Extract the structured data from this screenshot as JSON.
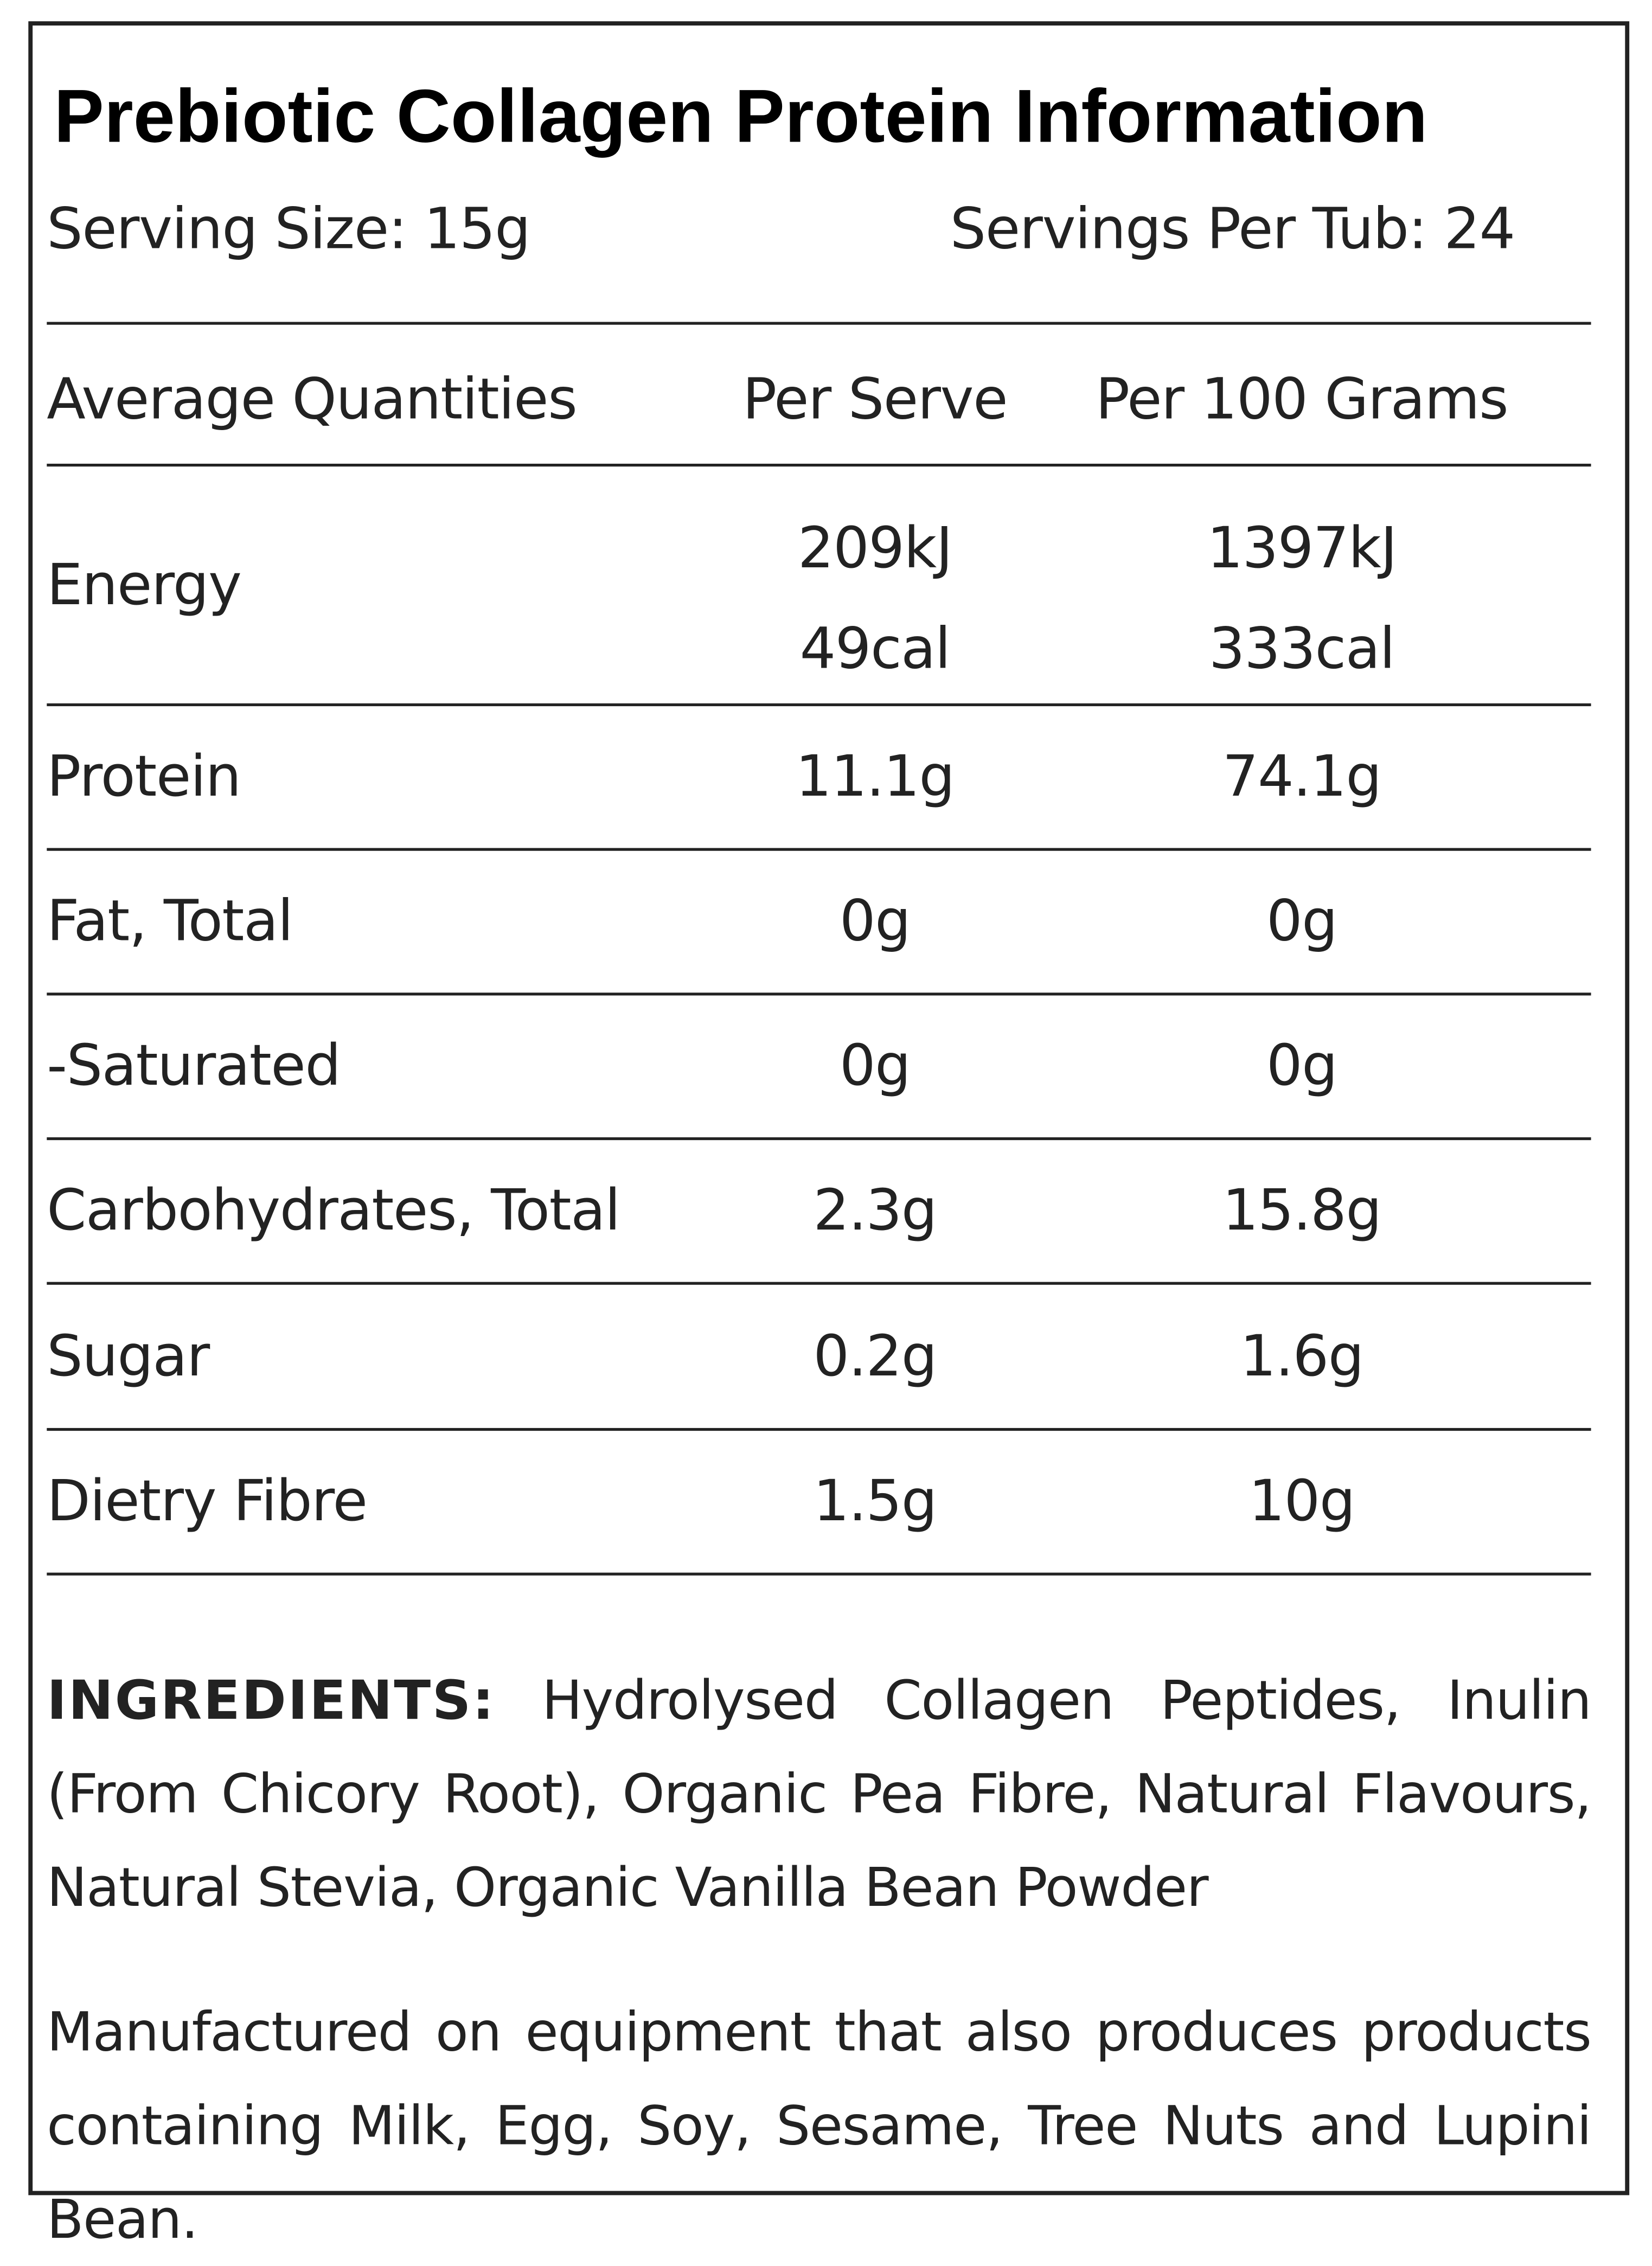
{
  "title": "Prebiotic Collagen Protein Information",
  "serving_size": "Serving Size: 15g",
  "servings_per_tub": "Servings Per Tub: 24",
  "table": {
    "header": [
      "Average Quantities",
      "Per Serve",
      "Per 100 Grams"
    ],
    "rows": [
      [
        [
          "Energy"
        ],
        [
          "209kJ",
          "49cal"
        ],
        [
          "1397kJ",
          "333cal"
        ]
      ],
      [
        [
          "Protein"
        ],
        [
          "11.1g"
        ],
        [
          "74.1g"
        ]
      ],
      [
        [
          "Fat, Total"
        ],
        [
          "0g"
        ],
        [
          "0g"
        ]
      ],
      [
        [
          "-Saturated"
        ],
        [
          "0g"
        ],
        [
          "0g"
        ]
      ],
      [
        [
          "Carbohydrates, Total"
        ],
        [
          "2.3g"
        ],
        [
          "15.8g"
        ]
      ],
      [
        [
          "Sugar"
        ],
        [
          "0.2g"
        ],
        [
          "1.6g"
        ]
      ],
      [
        [
          "Dietry Fibre"
        ],
        [
          "1.5g"
        ],
        [
          "10g"
        ]
      ]
    ]
  },
  "ingredients": {
    "label": "INGREDIENTS:",
    "text": "Hydrolysed Collagen Peptides, Inulin (From Chicory Root), Organic Pea Fibre, Natural Flavours, Natural Stevia, Organic Vanilla Bean Powder"
  },
  "allergen_note": "Manufactured on equipment that also produces products containing Milk, Egg, Soy, Sesame, Tree Nuts and Lupini Bean."
}
